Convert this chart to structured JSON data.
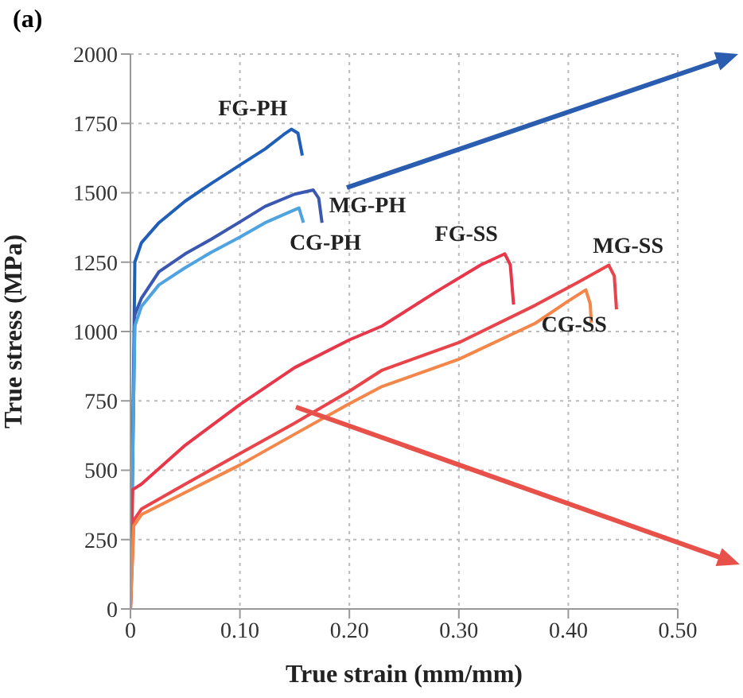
{
  "chart_data": {
    "type": "line",
    "xlabel": "True strain (mm/mm)",
    "ylabel": "True stress (MPa)",
    "annotations": [
      "(a)"
    ],
    "xlim": [
      0,
      0.5
    ],
    "xticks": [
      0,
      {
        "value": 0.1,
        "label": "0.10"
      },
      {
        "value": 0.2,
        "label": "0.20"
      },
      {
        "value": 0.3,
        "label": "0.30"
      },
      {
        "value": 0.4,
        "label": "0.40"
      },
      {
        "value": 0.5,
        "label": "0.50"
      }
    ],
    "ylim": [
      0,
      2000
    ],
    "yticks": [
      0,
      250,
      500,
      750,
      1000,
      1250,
      1500,
      1750,
      2000
    ],
    "grid": true,
    "marker": "none",
    "line_style": "solid",
    "series": [
      {
        "name": "FG-PH",
        "color": "#1f5fb8",
        "x": [
          0,
          0.003,
          0.004,
          0.01,
          0.026,
          0.05,
          0.074,
          0.1,
          0.123,
          0.14,
          0.147,
          0.153,
          0.157
        ],
        "values": [
          0,
          900,
          1250,
          1320,
          1392,
          1470,
          1534,
          1600,
          1658,
          1710,
          1729,
          1715,
          1634
        ]
      },
      {
        "name": "MG-PH",
        "color": "#3b58b0",
        "x": [
          0,
          0.003,
          0.004,
          0.01,
          0.026,
          0.05,
          0.074,
          0.1,
          0.123,
          0.15,
          0.167,
          0.172,
          0.175
        ],
        "values": [
          0,
          800,
          1060,
          1120,
          1215,
          1280,
          1333,
          1395,
          1451,
          1495,
          1510,
          1480,
          1392
        ]
      },
      {
        "name": "CG-PH",
        "color": "#4fa3e0",
        "x": [
          0,
          0.003,
          0.004,
          0.01,
          0.026,
          0.05,
          0.074,
          0.1,
          0.123,
          0.145,
          0.154,
          0.158
        ],
        "values": [
          0,
          780,
          1020,
          1090,
          1168,
          1230,
          1286,
          1340,
          1392,
          1430,
          1445,
          1392
        ]
      },
      {
        "name": "FG-SS",
        "color": "#e8364a",
        "x": [
          0,
          0.002,
          0.01,
          0.05,
          0.1,
          0.15,
          0.2,
          0.23,
          0.28,
          0.32,
          0.342,
          0.347,
          0.35
        ],
        "values": [
          0,
          430,
          450,
          590,
          737,
          870,
          970,
          1020,
          1145,
          1240,
          1280,
          1240,
          1097
        ]
      },
      {
        "name": "MG-SS",
        "color": "#e8444a",
        "x": [
          0,
          0.003,
          0.01,
          0.05,
          0.1,
          0.15,
          0.2,
          0.23,
          0.3,
          0.37,
          0.41,
          0.437,
          0.442,
          0.444
        ],
        "values": [
          0,
          320,
          360,
          450,
          560,
          670,
          785,
          861,
          960,
          1095,
          1180,
          1239,
          1200,
          1080
        ]
      },
      {
        "name": "CG-SS",
        "color": "#f4864a",
        "x": [
          0,
          0.003,
          0.01,
          0.05,
          0.1,
          0.15,
          0.2,
          0.23,
          0.3,
          0.37,
          0.4,
          0.416,
          0.42,
          0.421
        ],
        "values": [
          0,
          300,
          340,
          420,
          519,
          630,
          740,
          802,
          900,
          1030,
          1110,
          1150,
          1100,
          1032
        ]
      }
    ]
  }
}
